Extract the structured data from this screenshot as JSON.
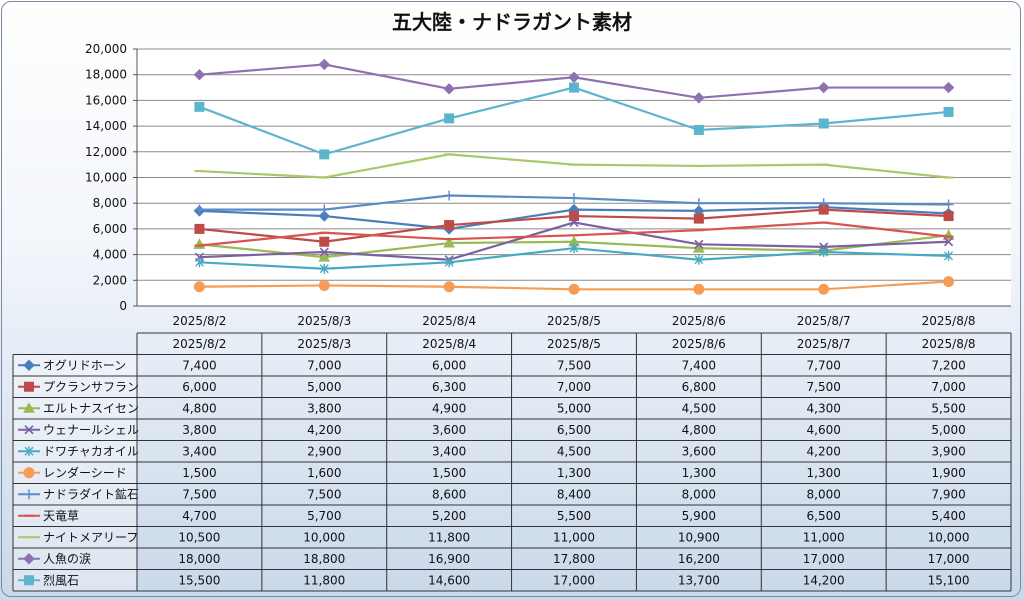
{
  "chart_data": {
    "type": "line",
    "title": "五大陸・ナドラガント素材",
    "ylim": [
      0,
      20000
    ],
    "yticks": [
      "0",
      "2,000",
      "4,000",
      "6,000",
      "8,000",
      "10,000",
      "12,000",
      "14,000",
      "16,000",
      "18,000",
      "20,000"
    ],
    "categories": [
      "2025/8/2",
      "2025/8/3",
      "2025/8/4",
      "2025/8/5",
      "2025/8/6",
      "2025/8/7",
      "2025/8/8"
    ],
    "grid": true,
    "legend": "data-table",
    "series": [
      {
        "name": "オグリドホーン",
        "color": "#4a7ebb",
        "marker": "diamond",
        "values": [
          7400,
          7000,
          6000,
          7500,
          7400,
          7700,
          7200
        ],
        "labels": [
          "7,400",
          "7,000",
          "6,000",
          "7,500",
          "7,400",
          "7,700",
          "7,200"
        ]
      },
      {
        "name": "プクランサフラン",
        "color": "#be4b48",
        "marker": "square",
        "values": [
          6000,
          5000,
          6300,
          7000,
          6800,
          7500,
          7000
        ],
        "labels": [
          "6,000",
          "5,000",
          "6,300",
          "7,000",
          "6,800",
          "7,500",
          "7,000"
        ]
      },
      {
        "name": "エルトナスイセン",
        "color": "#98b954",
        "marker": "triangle",
        "values": [
          4800,
          3800,
          4900,
          5000,
          4500,
          4300,
          5500
        ],
        "labels": [
          "4,800",
          "3,800",
          "4,900",
          "5,000",
          "4,500",
          "4,300",
          "5,500"
        ]
      },
      {
        "name": "ウェナールシェル",
        "color": "#7d60a0",
        "marker": "x",
        "values": [
          3800,
          4200,
          3600,
          6500,
          4800,
          4600,
          5000
        ],
        "labels": [
          "3,800",
          "4,200",
          "3,600",
          "6,500",
          "4,800",
          "4,600",
          "5,000"
        ]
      },
      {
        "name": "ドワチャカオイル",
        "color": "#46aac5",
        "marker": "star",
        "values": [
          3400,
          2900,
          3400,
          4500,
          3600,
          4200,
          3900
        ],
        "labels": [
          "3,400",
          "2,900",
          "3,400",
          "4,500",
          "3,600",
          "4,200",
          "3,900"
        ]
      },
      {
        "name": "レンダーシード",
        "color": "#f59d56",
        "marker": "circle",
        "values": [
          1500,
          1600,
          1500,
          1300,
          1300,
          1300,
          1900
        ],
        "labels": [
          "1,500",
          "1,600",
          "1,500",
          "1,300",
          "1,300",
          "1,300",
          "1,900"
        ]
      },
      {
        "name": "ナドラダイト鉱石",
        "color": "#5b8ac5",
        "marker": "plus",
        "values": [
          7500,
          7500,
          8600,
          8400,
          8000,
          8000,
          7900
        ],
        "labels": [
          "7,500",
          "7,500",
          "8,600",
          "8,400",
          "8,000",
          "8,000",
          "7,900"
        ]
      },
      {
        "name": "天竜草",
        "color": "#d9534f",
        "marker": "dash",
        "values": [
          4700,
          5700,
          5200,
          5500,
          5900,
          6500,
          5400
        ],
        "labels": [
          "4,700",
          "5,700",
          "5,200",
          "5,500",
          "5,900",
          "6,500",
          "5,400"
        ]
      },
      {
        "name": "ナイトメアリーフ",
        "color": "#a8c96b",
        "marker": "dash",
        "values": [
          10500,
          10000,
          11800,
          11000,
          10900,
          11000,
          10000
        ],
        "labels": [
          "10,500",
          "10,000",
          "11,800",
          "11,000",
          "10,900",
          "11,000",
          "10,000"
        ]
      },
      {
        "name": "人魚の涙",
        "color": "#8e71b0",
        "marker": "diamond",
        "values": [
          18000,
          18800,
          16900,
          17800,
          16200,
          17000,
          17000
        ],
        "labels": [
          "18,000",
          "18,800",
          "16,900",
          "17,800",
          "16,200",
          "17,000",
          "17,000"
        ]
      },
      {
        "name": "烈風石",
        "color": "#5db4cd",
        "marker": "square",
        "values": [
          15500,
          11800,
          14600,
          17000,
          13700,
          14200,
          15100
        ],
        "labels": [
          "15,500",
          "11,800",
          "14,600",
          "17,000",
          "13,700",
          "14,200",
          "15,100"
        ]
      }
    ]
  }
}
